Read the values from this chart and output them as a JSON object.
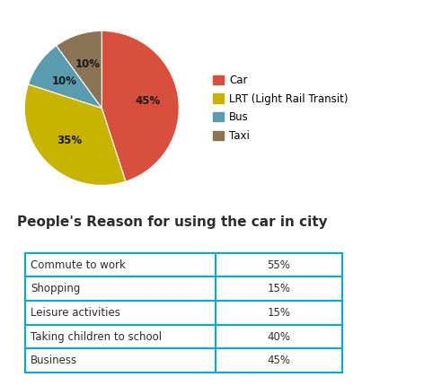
{
  "pie_labels": [
    "Car",
    "LRT (Light Rail Transit)",
    "Bus",
    "Taxi"
  ],
  "pie_values": [
    45,
    35,
    10,
    10
  ],
  "pie_colors": [
    "#d94f3d",
    "#c8b400",
    "#5b9baf",
    "#8b7355"
  ],
  "pie_label_texts": [
    "45%",
    "35%",
    "10%",
    "10%"
  ],
  "legend_labels": [
    "Car",
    "LRT (Light Rail Transit)",
    "Bus",
    "Taxi"
  ],
  "table_title": "People's Reason for using the car in city",
  "table_rows": [
    [
      "Commute to work",
      "55%"
    ],
    [
      "Shopping",
      "15%"
    ],
    [
      "Leisure activities",
      "15%"
    ],
    [
      "Taking children to school",
      "40%"
    ],
    [
      "Business",
      "45%"
    ]
  ],
  "table_border_color": "#00aadd",
  "label_color_dark": "#2c2c2c",
  "pie_label_font_size": 8.5,
  "legend_font_size": 8.5,
  "title_font_size": 11,
  "table_font_size": 8.5
}
